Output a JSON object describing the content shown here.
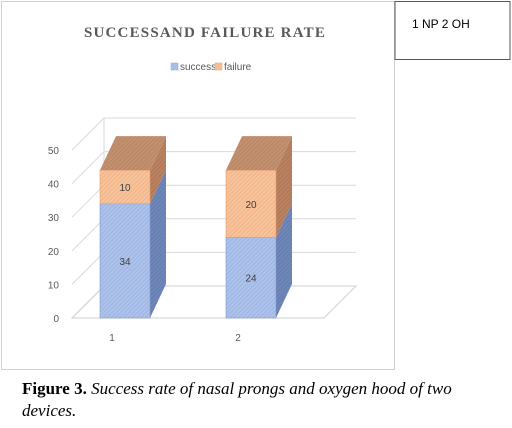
{
  "chart_data": {
    "type": "bar",
    "stacked": true,
    "three_d": true,
    "title": "SUCCESSAND FAILURE RATE",
    "categories": [
      "1",
      "2"
    ],
    "series": [
      {
        "name": "success",
        "values": [
          34,
          24
        ],
        "color": "#adc2ea"
      },
      {
        "name": "failure",
        "values": [
          10,
          20
        ],
        "color": "#f7c39b"
      }
    ],
    "data_labels": [
      [
        "34",
        "24"
      ],
      [
        "10",
        "20"
      ]
    ],
    "y_ticks": [
      "0",
      "10",
      "20",
      "30",
      "40",
      "50"
    ],
    "ylim": [
      0,
      50
    ],
    "legend_position": "top",
    "annotation": "1 NP 2 OH",
    "grid": true
  },
  "caption": {
    "label": "Figure 3.",
    "text": " Success rate of nasal prongs and oxygen hood of two devices."
  }
}
